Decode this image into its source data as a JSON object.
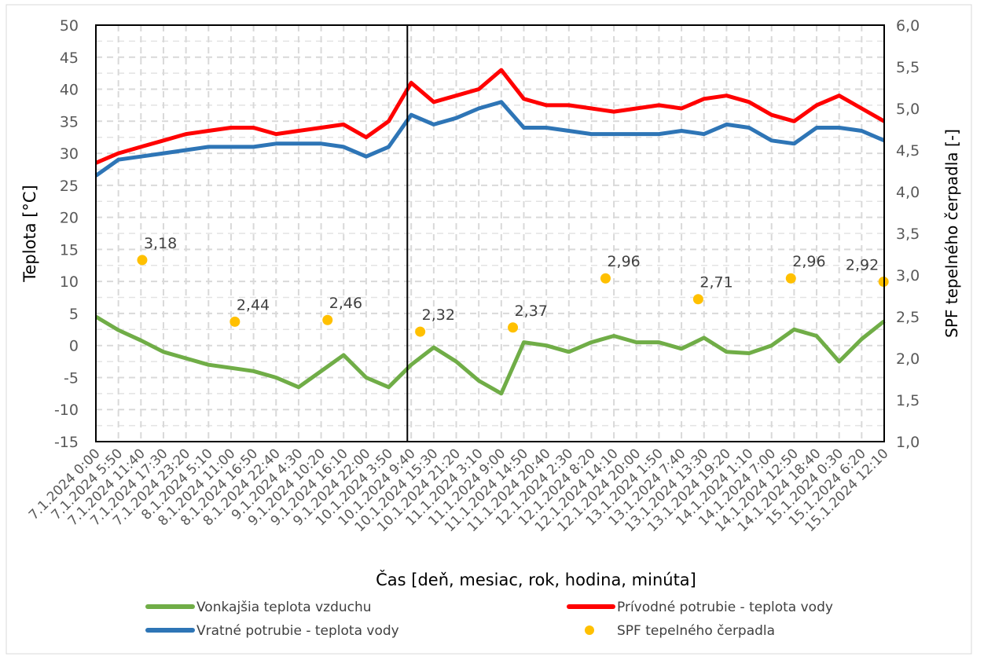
{
  "chart_data": {
    "type": "line",
    "xlabel": "Čas [deň, mesiac, rok, hodina, minúta]",
    "ylabel": "Teplota [°C]",
    "y2label": "SPF tepelného čerpadla [-]",
    "ylim": [
      -15,
      50
    ],
    "yticks": [
      "50",
      "45",
      "40",
      "35",
      "30",
      "25",
      "20",
      "15",
      "10",
      "5",
      "0",
      "-5",
      "-10",
      "-15"
    ],
    "y2lim": [
      1.0,
      6.0
    ],
    "y2ticks": [
      "6,0",
      "5,5",
      "5,0",
      "4,5",
      "4,0",
      "3,5",
      "3,0",
      "2,5",
      "2,0",
      "1,5",
      "1,0"
    ],
    "grid": true,
    "legend_position": "bottom",
    "vertical_marker": "10.1.2024 8:40",
    "categories": [
      "7.1.2024 0:00",
      "7.1.2024 5:50",
      "7.1.2024 11:40",
      "7.1.2024 17:30",
      "7.1.2024 23:20",
      "8.1.2024 5:10",
      "8.1.2024 11:00",
      "8.1.2024 16:50",
      "8.1.2024 22:40",
      "9.1.2024 4:30",
      "9.1.2024 10:20",
      "9.1.2024 16:10",
      "9.1.2024 22:00",
      "10.1.2024 3:50",
      "10.1.2024 9:40",
      "10.1.2024 15:30",
      "10.1.2024 21:20",
      "11.1.2024 3:10",
      "11.1.2024 9:00",
      "11.1.2024 14:50",
      "11.1.2024 20:40",
      "12.1.2024 2:30",
      "12.1.2024 8:20",
      "12.1.2024 14:10",
      "12.1.2024 20:00",
      "13.1.2024 1:50",
      "13.1.2024 7:40",
      "13.1.2024 13:30",
      "13.1.2024 19:20",
      "14.1.2024 1:10",
      "14.1.2024 7:00",
      "14.1.2024 12:50",
      "14.1.2024 18:40",
      "15.1.2024 0:30",
      "15.1.2024 6:20",
      "15.1.2024 12:10"
    ],
    "series": [
      {
        "name": "Vonkajšia teplota vzduchu",
        "color": "#70AD47",
        "axis": "left",
        "values": [
          4.5,
          2.4,
          0.8,
          -1,
          -2,
          -3,
          -3.5,
          -4,
          -5,
          -6.5,
          -4,
          -1.5,
          -5,
          -6.5,
          -3,
          -0.3,
          -2.5,
          -5.5,
          -7.5,
          0.5,
          0,
          -1,
          0.5,
          1.5,
          0.5,
          0.5,
          -0.5,
          1.2,
          -1,
          -1.2,
          0,
          2.5,
          1.5,
          -2.5,
          1,
          3.8
        ]
      },
      {
        "name": "Prívodné potrubie - teplota vody",
        "color": "#FF0000",
        "axis": "left",
        "values": [
          28.5,
          30,
          31,
          32,
          33,
          33.5,
          34,
          34,
          33,
          33.5,
          34,
          34.5,
          32.5,
          35,
          41,
          38,
          39,
          40,
          43,
          38.5,
          37.5,
          37.5,
          37,
          36.5,
          37,
          37.5,
          37,
          38.5,
          39,
          38,
          36,
          35,
          37.5,
          39,
          37,
          35
        ]
      },
      {
        "name": "Vratné potrubie - teplota vody",
        "color": "#2E75B6",
        "axis": "left",
        "values": [
          26.5,
          29,
          29.5,
          30,
          30.5,
          31,
          31,
          31,
          31.5,
          31.5,
          31.5,
          31,
          29.5,
          31,
          36,
          34.5,
          35.5,
          37,
          38,
          34,
          34,
          33.5,
          33,
          33,
          33,
          33,
          33.5,
          33,
          34.5,
          34,
          32,
          31.5,
          34,
          34,
          33.5,
          32
        ]
      },
      {
        "name": "SPF tepelného čerpadla",
        "color": "#FFC000",
        "axis": "right",
        "type": "scatter",
        "x": [
          "7.1.2024 12:00",
          "8.1.2024 12:00",
          "9.1.2024 12:00",
          "10.1.2024 12:00",
          "11.1.2024 12:00",
          "12.1.2024 12:00",
          "13.1.2024 12:00",
          "14.1.2024 12:00",
          "15.1.2024 12:00"
        ],
        "values": [
          3.18,
          2.44,
          2.46,
          2.32,
          2.37,
          2.96,
          2.71,
          2.96,
          2.92
        ],
        "labels": [
          "3,18",
          "2,44",
          "2,46",
          "2,32",
          "2,37",
          "2,96",
          "2,71",
          "2,96",
          "2,92"
        ]
      }
    ]
  }
}
